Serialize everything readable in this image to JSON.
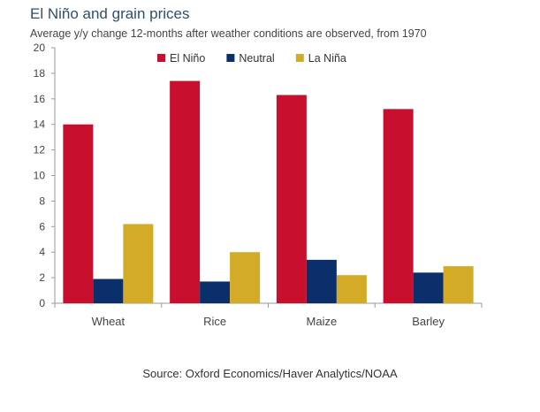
{
  "chart_data": {
    "type": "bar",
    "title": "El Niño and grain prices",
    "subtitle": "Average y/y change 12-months after weather conditions are observed, from 1970",
    "categories": [
      "Wheat",
      "Rice",
      "Maize",
      "Barley"
    ],
    "series": [
      {
        "name": "El Niño",
        "color": "#c8102e",
        "values": [
          14.0,
          17.4,
          16.3,
          15.2
        ]
      },
      {
        "name": "Neutral",
        "color": "#0b2f6b",
        "values": [
          1.9,
          1.7,
          3.4,
          2.4
        ]
      },
      {
        "name": "La Niña",
        "color": "#d4ab26",
        "values": [
          6.2,
          4.0,
          2.2,
          2.9
        ]
      }
    ],
    "ylim": [
      0,
      20
    ],
    "yticks": [
      "0",
      "2",
      "4",
      "6",
      "8",
      "10",
      "12",
      "14",
      "16",
      "18",
      "20"
    ],
    "xlabel": "",
    "ylabel": "",
    "grid": false,
    "legend_position": "top-center",
    "source": "Source: Oxford Economics/Haver Analytics/NOAA"
  }
}
